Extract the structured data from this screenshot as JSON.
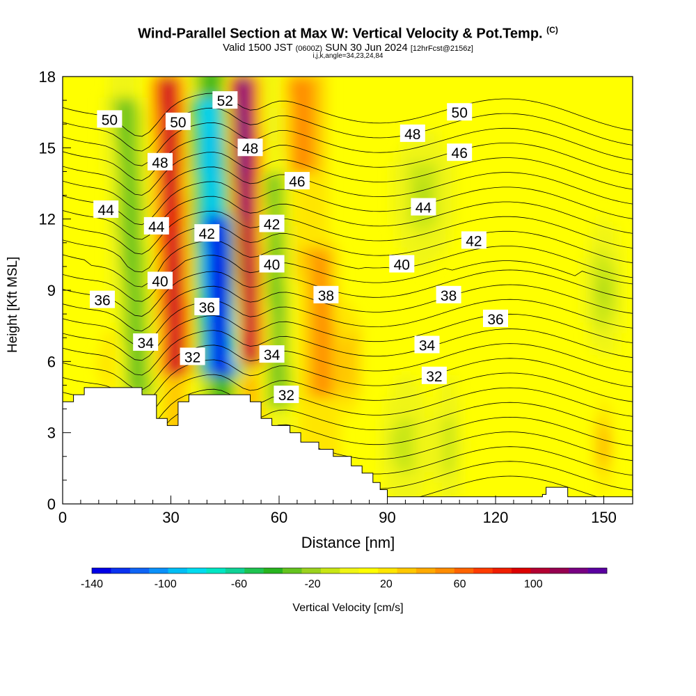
{
  "title": "Wind-Parallel Section at Max W: Vertical Velocity & Pot.Temp.",
  "title_mark": "(C)",
  "subtitle_main": "Valid 1500 JST",
  "subtitle_utc": "(0600Z)",
  "subtitle_date": "SUN 30 Jun 2024",
  "subtitle_run": "[12hrFcst@2156z]",
  "params": "i,j,k,angle=34,23,24,84",
  "chart_data": {
    "type": "heatmap",
    "xlabel": "Distance [nm]",
    "ylabel": "Height [Kft MSL]",
    "xlim": [
      0,
      158
    ],
    "ylim": [
      0,
      18
    ],
    "x_ticks": [
      "0",
      "30",
      "60",
      "90",
      "120",
      "150"
    ],
    "y_ticks": [
      "0",
      "3",
      "6",
      "9",
      "12",
      "15",
      "18"
    ],
    "colorbar": {
      "label": "Vertical Velocity [cm/s]",
      "range": [
        -140,
        140
      ],
      "tick_labels": [
        "-140",
        "-100",
        "-60",
        "-20",
        "20",
        "60",
        "100"
      ],
      "colors": [
        "#0000e6",
        "#0a32f0",
        "#0f64f5",
        "#0a91fa",
        "#00bef5",
        "#00dcf0",
        "#00e6c3",
        "#0fd296",
        "#1ec350",
        "#28b41e",
        "#64c31e",
        "#9bd21e",
        "#c8e614",
        "#f0f514",
        "#ffff00",
        "#ffe600",
        "#ffc800",
        "#ffaa00",
        "#ff8c00",
        "#ff6400",
        "#ff3c00",
        "#f01e00",
        "#dc0000",
        "#b40032",
        "#960050",
        "#780082",
        "#5a00a0"
      ]
    },
    "contour_variable": "Potential Temperature",
    "contour_labels": [
      {
        "text": "50",
        "x": 13,
        "y": 16.2
      },
      {
        "text": "50",
        "x": 32,
        "y": 16.1
      },
      {
        "text": "52",
        "x": 45,
        "y": 17.0
      },
      {
        "text": "48",
        "x": 27,
        "y": 14.4
      },
      {
        "text": "48",
        "x": 52,
        "y": 15.0
      },
      {
        "text": "46",
        "x": 65,
        "y": 13.6
      },
      {
        "text": "44",
        "x": 12,
        "y": 12.4
      },
      {
        "text": "44",
        "x": 26,
        "y": 11.7
      },
      {
        "text": "42",
        "x": 40,
        "y": 11.4
      },
      {
        "text": "42",
        "x": 58,
        "y": 11.8
      },
      {
        "text": "40",
        "x": 27,
        "y": 9.4
      },
      {
        "text": "40",
        "x": 58,
        "y": 10.1
      },
      {
        "text": "38",
        "x": 73,
        "y": 8.8
      },
      {
        "text": "36",
        "x": 11,
        "y": 8.6
      },
      {
        "text": "36",
        "x": 40,
        "y": 8.3
      },
      {
        "text": "34",
        "x": 23,
        "y": 6.8
      },
      {
        "text": "32",
        "x": 36,
        "y": 6.2
      },
      {
        "text": "34",
        "x": 58,
        "y": 6.3
      },
      {
        "text": "32",
        "x": 62,
        "y": 4.6
      },
      {
        "text": "50",
        "x": 110,
        "y": 16.5
      },
      {
        "text": "48",
        "x": 97,
        "y": 15.6
      },
      {
        "text": "46",
        "x": 110,
        "y": 14.8
      },
      {
        "text": "44",
        "x": 100,
        "y": 12.5
      },
      {
        "text": "42",
        "x": 114,
        "y": 11.1
      },
      {
        "text": "40",
        "x": 94,
        "y": 10.1
      },
      {
        "text": "38",
        "x": 107,
        "y": 8.8
      },
      {
        "text": "36",
        "x": 120,
        "y": 7.8
      },
      {
        "text": "34",
        "x": 101,
        "y": 6.7
      },
      {
        "text": "32",
        "x": 103,
        "y": 5.4
      }
    ],
    "terrain": [
      [
        0,
        4.3
      ],
      [
        3,
        4.6
      ],
      [
        6,
        4.9
      ],
      [
        22,
        4.6
      ],
      [
        26,
        3.6
      ],
      [
        29,
        3.3
      ],
      [
        32,
        4.3
      ],
      [
        35,
        4.6
      ],
      [
        52,
        4.3
      ],
      [
        55,
        3.6
      ],
      [
        58,
        3.3
      ],
      [
        63,
        3.0
      ],
      [
        66,
        2.6
      ],
      [
        71,
        2.3
      ],
      [
        75,
        2.0
      ],
      [
        80,
        1.6
      ],
      [
        83,
        1.3
      ],
      [
        86,
        0.9
      ],
      [
        88,
        0.6
      ],
      [
        90,
        0.3
      ],
      [
        133,
        0.4
      ],
      [
        134,
        0.7
      ],
      [
        139,
        0.7
      ],
      [
        140,
        0.3
      ],
      [
        158,
        0.3
      ]
    ]
  }
}
